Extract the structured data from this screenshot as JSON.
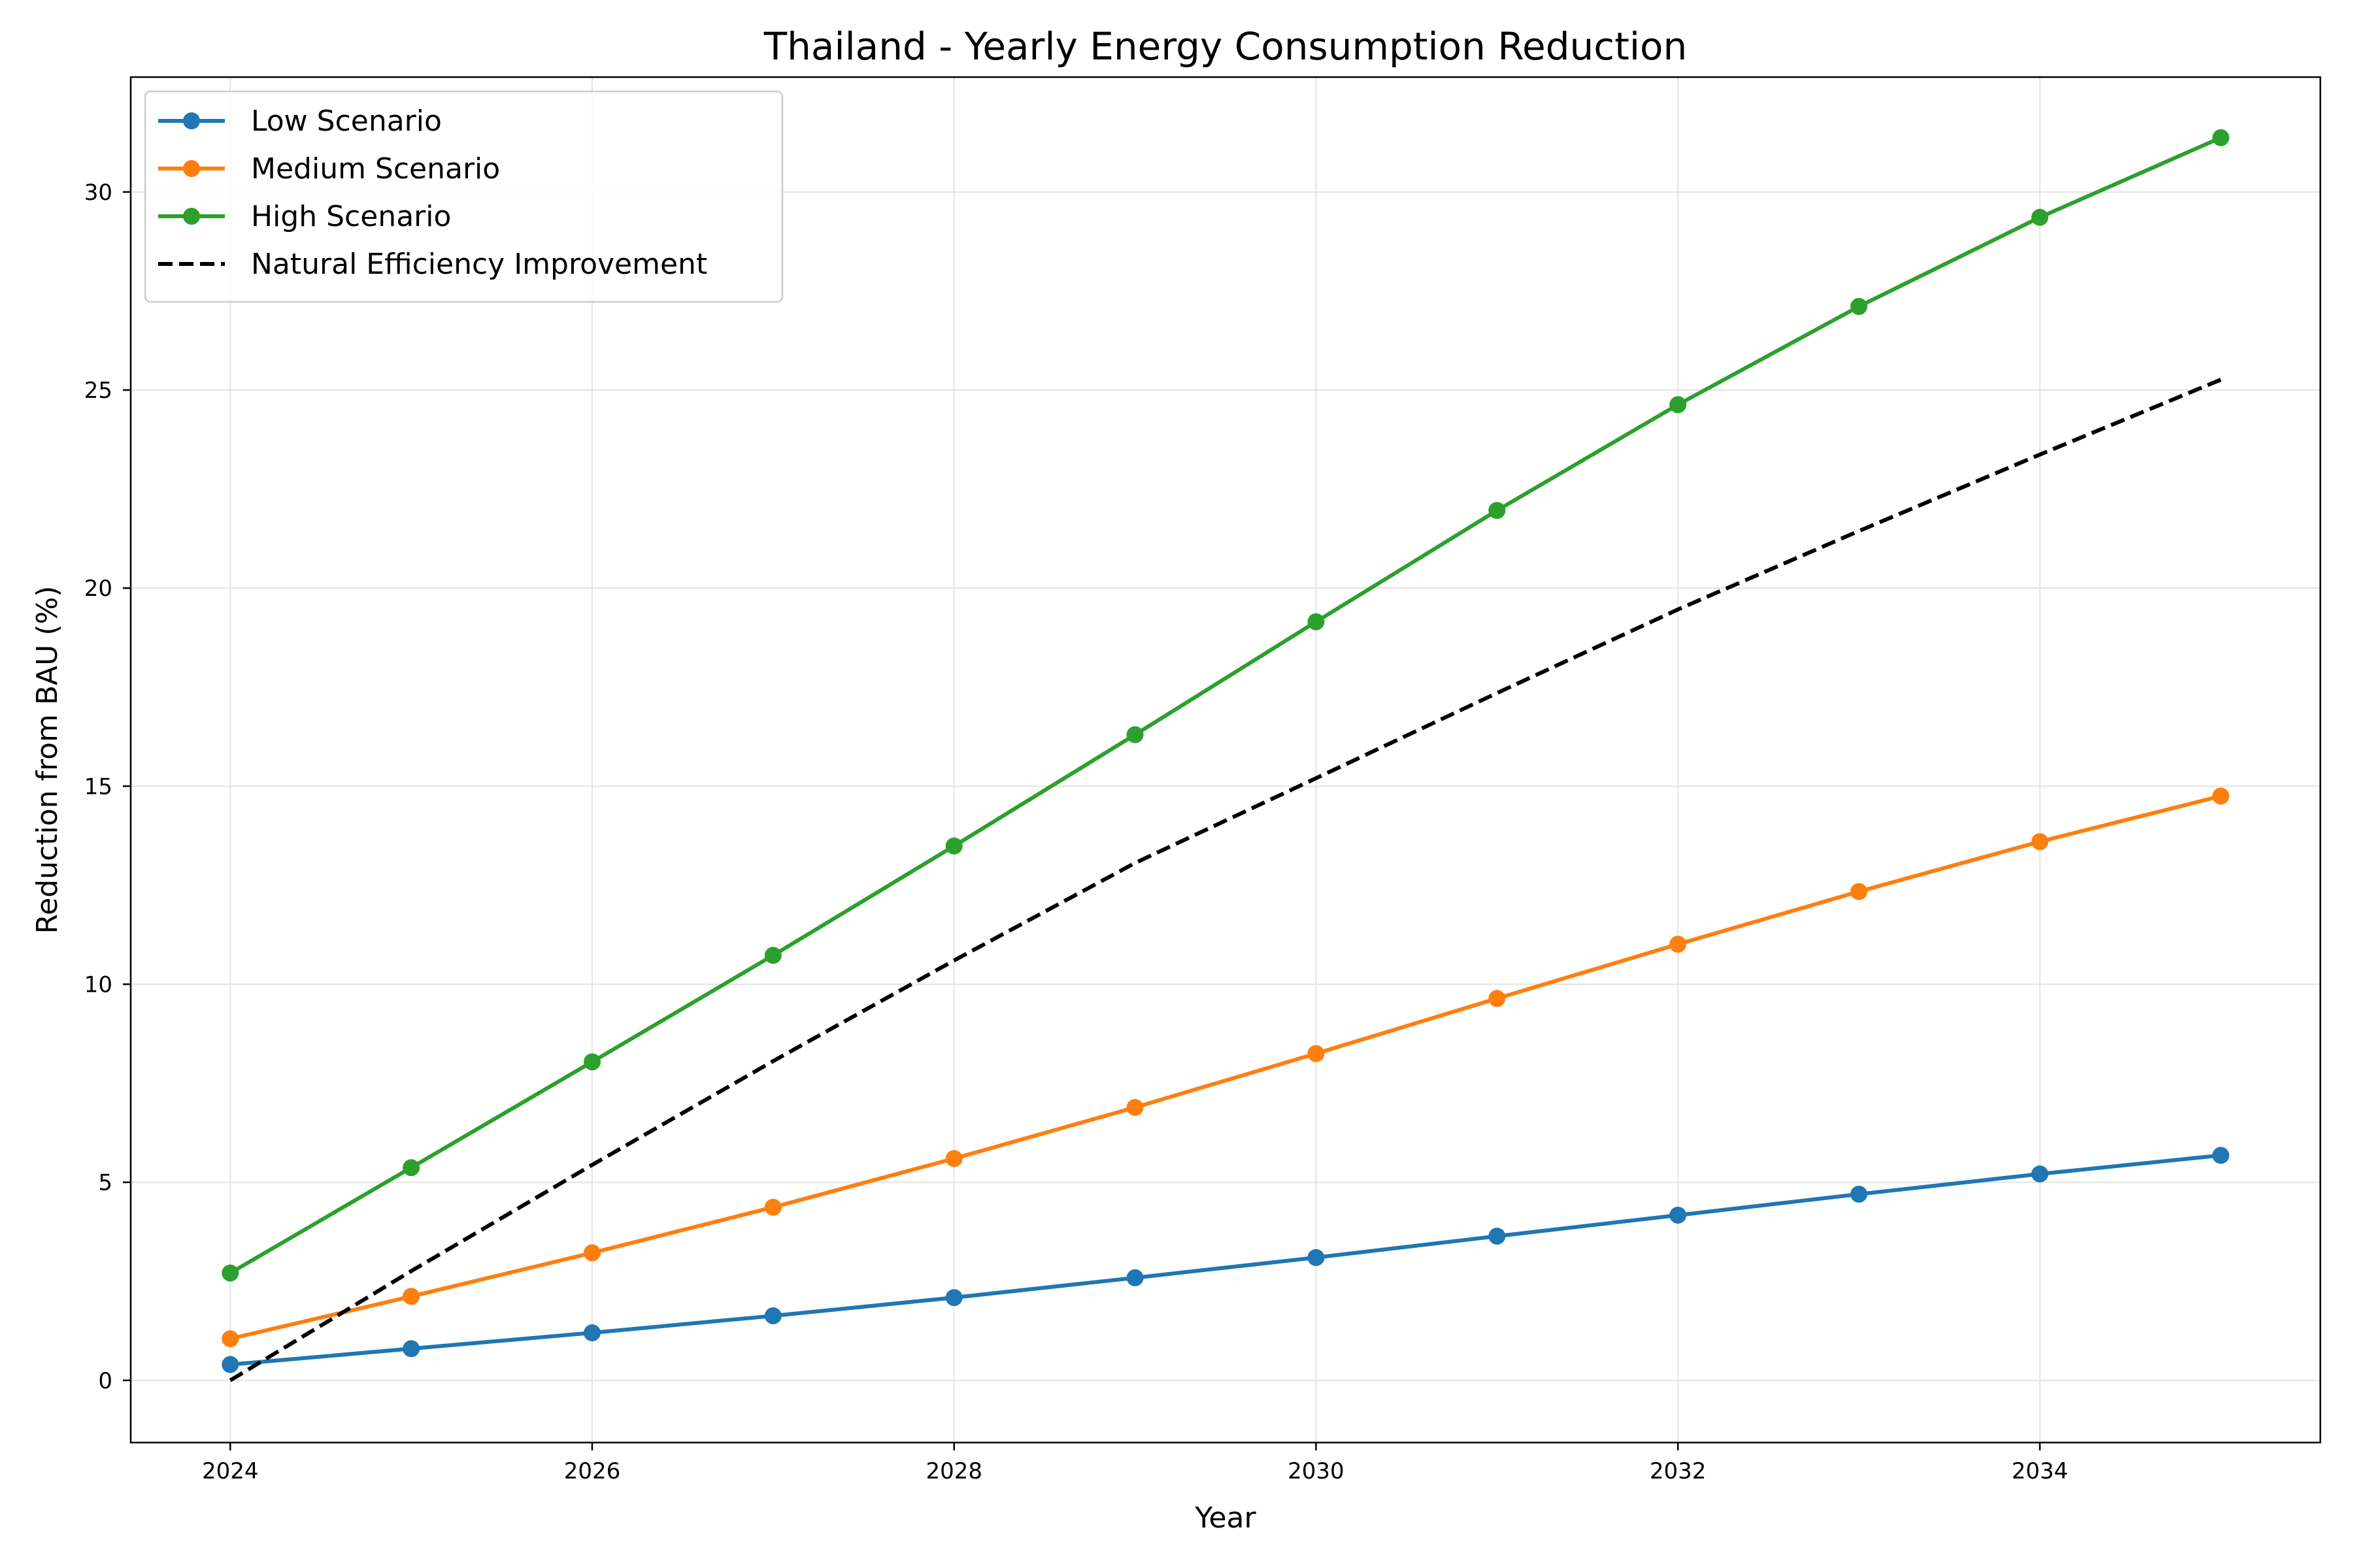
{
  "chart_data": {
    "type": "line",
    "title": "Thailand - Yearly Energy Consumption Reduction",
    "xlabel": "Year",
    "ylabel": "Reduction from BAU (%)",
    "x": [
      2024,
      2025,
      2026,
      2027,
      2028,
      2029,
      2030,
      2031,
      2032,
      2033,
      2034,
      2035
    ],
    "xlim": [
      2023.45,
      2035.55
    ],
    "ylim": [
      -1.57,
      32.9
    ],
    "xticks": [
      2024,
      2026,
      2028,
      2030,
      2032,
      2034
    ],
    "yticks": [
      0,
      5,
      10,
      15,
      20,
      25,
      30
    ],
    "grid": true,
    "legend_position": "upper left",
    "series": [
      {
        "name": "Low Scenario",
        "color": "#1f77b4",
        "style": "solid",
        "marker": "circle",
        "values": [
          0.4,
          0.8,
          1.2,
          1.63,
          2.09,
          2.59,
          3.1,
          3.64,
          4.17,
          4.7,
          5.21,
          5.68
        ]
      },
      {
        "name": "Medium Scenario",
        "color": "#ff7f0e",
        "style": "solid",
        "marker": "circle",
        "values": [
          1.05,
          2.12,
          3.22,
          4.37,
          5.6,
          6.89,
          8.25,
          9.64,
          11.01,
          12.34,
          13.6,
          14.75
        ]
      },
      {
        "name": "High Scenario",
        "color": "#2ca02c",
        "style": "solid",
        "marker": "circle",
        "values": [
          2.71,
          5.37,
          8.04,
          10.73,
          13.49,
          16.3,
          19.15,
          21.96,
          24.63,
          27.11,
          29.36,
          31.37
        ]
      },
      {
        "name": "Natural Efficiency Improvement",
        "color": "#000000",
        "style": "dashed",
        "marker": "none",
        "values": [
          0.0,
          2.76,
          5.44,
          8.06,
          10.6,
          13.06,
          15.2,
          17.35,
          19.46,
          21.44,
          23.37,
          25.26
        ]
      }
    ]
  }
}
